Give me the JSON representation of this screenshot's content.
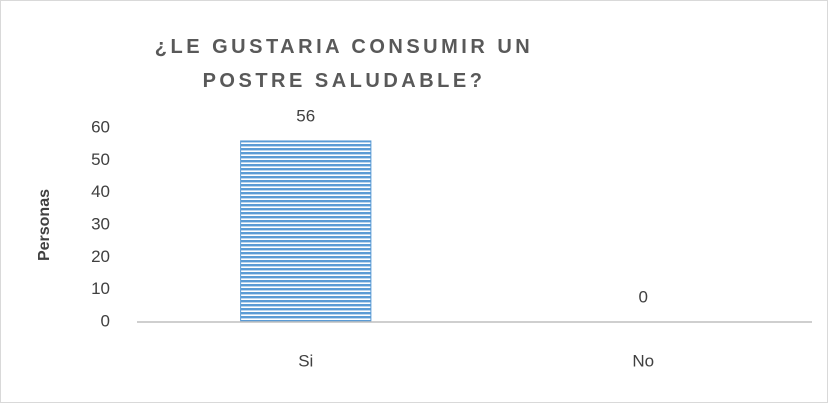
{
  "chart_data": {
    "type": "bar",
    "title": "¿LE GUSTARIA CONSUMIR UN POSTRE SALUDABLE?",
    "y_label": "Personas",
    "categories": [
      "Si",
      "No"
    ],
    "values": [
      56,
      0
    ],
    "color": "#5b9bd5",
    "ylim": [
      0,
      60
    ],
    "yticks": [
      0,
      10,
      20,
      30,
      40,
      50,
      60
    ],
    "grid": false
  }
}
